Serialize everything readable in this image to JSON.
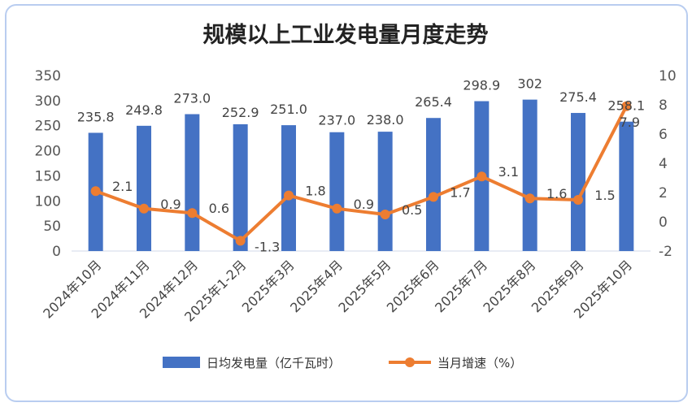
{
  "chart_data": {
    "type": "bar+line",
    "title": "规模以上工业发电量月度走势",
    "categories": [
      "2024年10月",
      "2024年11月",
      "2024年12月",
      "2025年1-2月",
      "2025年3月",
      "2025年4月",
      "2025年5月",
      "2025年6月",
      "2025年7月",
      "2025年8月",
      "2025年9月",
      "2025年10月"
    ],
    "series": [
      {
        "name": "日均发电量（亿千瓦时）",
        "type": "bar",
        "axis": "left",
        "color": "#4472c4",
        "values": [
          235.8,
          249.8,
          273.0,
          252.9,
          251.0,
          237.0,
          238.0,
          265.4,
          298.9,
          302,
          275.4,
          258.1
        ],
        "labels": [
          "235.8",
          "249.8",
          "273.0",
          "252.9",
          "251.0",
          "237.0",
          "238.0",
          "265.4",
          "298.9",
          "302",
          "275.4",
          "258.1"
        ]
      },
      {
        "name": "当月增速（%）",
        "type": "line",
        "axis": "right",
        "color": "#ed7d31",
        "values": [
          2.1,
          0.9,
          0.6,
          -1.3,
          1.8,
          0.9,
          0.5,
          1.7,
          3.1,
          1.6,
          1.5,
          7.9
        ],
        "labels": [
          "2.1",
          "0.9",
          "0.6",
          "-1.3",
          "1.8",
          "0.9",
          "0.5",
          "1.7",
          "3.1",
          "1.6",
          "1.5",
          "7.9"
        ]
      }
    ],
    "left_axis": {
      "range": [
        0,
        350
      ],
      "ticks": [
        "0",
        "50",
        "100",
        "150",
        "200",
        "250",
        "300",
        "350"
      ]
    },
    "right_axis": {
      "range": [
        -2,
        10
      ],
      "ticks": [
        "-2",
        "0",
        "2",
        "4",
        "6",
        "8",
        "10"
      ]
    },
    "legend": "bottom",
    "grid": false
  }
}
